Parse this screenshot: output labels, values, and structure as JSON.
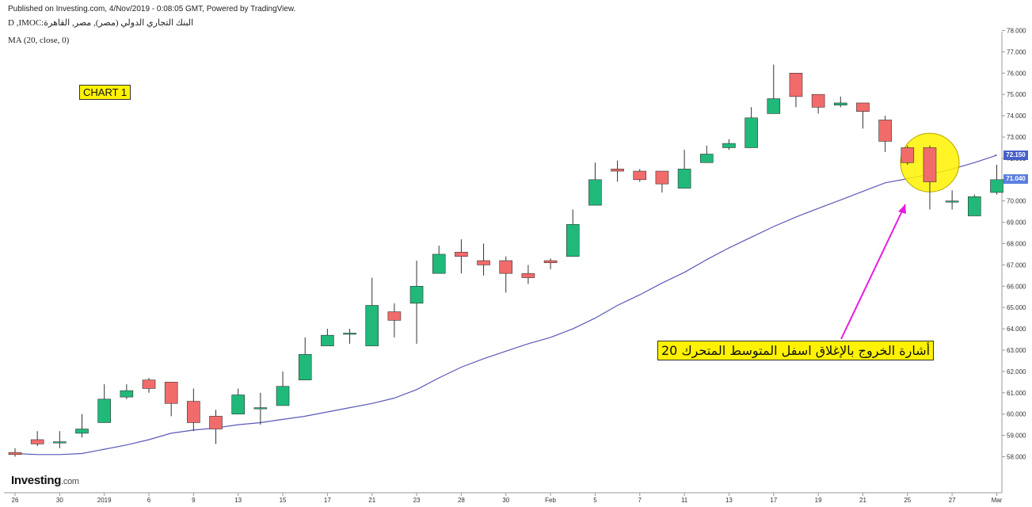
{
  "header": {
    "published": "Published on Investing.com, 4/Nov/2019 - 0:08:05 GMT, Powered by TradingView.",
    "symbol": "D ,IMOC:البنك التجاري الدولي (مصر), مصر, القاهرة",
    "indicator": "MA (20, close, 0)"
  },
  "chart_label": "CHART 1",
  "annotation": "أشارة الخروج بالإغلاق اسفل المتوسط المتحرك 20",
  "logo": {
    "name": "Investing",
    "suffix": ".com"
  },
  "price_tags": {
    "ma": "72.150",
    "close": "71.040"
  },
  "colors": {
    "up": "#20b97a",
    "down": "#f26b6b",
    "ma": "#5b58b8",
    "highlight": "#fff200",
    "arrow": "#e81adf",
    "ma_tag": "#4660c8",
    "close_tag": "#5a7fe0"
  },
  "chart_data": {
    "type": "candlestick",
    "title": "",
    "ylim": [
      57,
      78.5
    ],
    "y_ticks": [
      "58.000",
      "59.000",
      "60.000",
      "61.000",
      "62.000",
      "63.000",
      "64.000",
      "65.000",
      "66.000",
      "67.000",
      "68.000",
      "69.000",
      "70.000",
      "71.000",
      "72.000",
      "73.000",
      "74.000",
      "75.000",
      "76.000",
      "77.000",
      "78.000"
    ],
    "x_ticks": [
      "26",
      "30",
      "2019",
      "6",
      "9",
      "13",
      "15",
      "17",
      "21",
      "23",
      "28",
      "30",
      "Feb",
      "5",
      "7",
      "11",
      "13",
      "17",
      "19",
      "21",
      "25",
      "27",
      "Mar"
    ],
    "candles": [
      {
        "o": 58.2,
        "h": 58.4,
        "l": 58.0,
        "c": 58.1
      },
      {
        "o": 58.8,
        "h": 59.2,
        "l": 58.5,
        "c": 58.6
      },
      {
        "o": 58.7,
        "h": 59.2,
        "l": 58.4,
        "c": 58.7
      },
      {
        "o": 59.1,
        "h": 60.0,
        "l": 58.9,
        "c": 59.3
      },
      {
        "o": 59.6,
        "h": 61.4,
        "l": 59.6,
        "c": 60.7
      },
      {
        "o": 60.8,
        "h": 61.4,
        "l": 60.7,
        "c": 61.1
      },
      {
        "o": 61.6,
        "h": 61.7,
        "l": 61.0,
        "c": 61.2
      },
      {
        "o": 61.5,
        "h": 61.5,
        "l": 59.9,
        "c": 60.5
      },
      {
        "o": 60.6,
        "h": 61.2,
        "l": 59.2,
        "c": 59.6
      },
      {
        "o": 59.9,
        "h": 60.2,
        "l": 58.6,
        "c": 59.3
      },
      {
        "o": 60.0,
        "h": 61.2,
        "l": 60.0,
        "c": 60.9
      },
      {
        "o": 60.3,
        "h": 61.0,
        "l": 59.5,
        "c": 60.3
      },
      {
        "o": 60.4,
        "h": 62.0,
        "l": 60.4,
        "c": 61.3
      },
      {
        "o": 61.6,
        "h": 63.6,
        "l": 61.6,
        "c": 62.8
      },
      {
        "o": 63.2,
        "h": 64.0,
        "l": 63.2,
        "c": 63.7
      },
      {
        "o": 63.8,
        "h": 64.0,
        "l": 63.3,
        "c": 63.8
      },
      {
        "o": 63.2,
        "h": 66.4,
        "l": 63.2,
        "c": 65.1
      },
      {
        "o": 64.8,
        "h": 65.2,
        "l": 63.6,
        "c": 64.4
      },
      {
        "o": 65.2,
        "h": 67.2,
        "l": 63.3,
        "c": 66.0
      },
      {
        "o": 66.6,
        "h": 67.9,
        "l": 66.6,
        "c": 67.5
      },
      {
        "o": 67.6,
        "h": 68.2,
        "l": 66.6,
        "c": 67.4
      },
      {
        "o": 67.2,
        "h": 68.0,
        "l": 66.5,
        "c": 67.0
      },
      {
        "o": 67.2,
        "h": 67.4,
        "l": 65.7,
        "c": 66.6
      },
      {
        "o": 66.6,
        "h": 67.0,
        "l": 66.1,
        "c": 66.4
      },
      {
        "o": 67.2,
        "h": 67.3,
        "l": 66.8,
        "c": 67.1
      },
      {
        "o": 67.4,
        "h": 69.6,
        "l": 67.4,
        "c": 68.9
      },
      {
        "o": 69.8,
        "h": 71.8,
        "l": 69.8,
        "c": 71.0
      },
      {
        "o": 71.5,
        "h": 71.9,
        "l": 70.9,
        "c": 71.4
      },
      {
        "o": 71.4,
        "h": 71.5,
        "l": 70.9,
        "c": 71.0
      },
      {
        "o": 71.4,
        "h": 71.4,
        "l": 70.4,
        "c": 70.8
      },
      {
        "o": 70.6,
        "h": 72.4,
        "l": 70.6,
        "c": 71.5
      },
      {
        "o": 71.8,
        "h": 72.6,
        "l": 71.8,
        "c": 72.2
      },
      {
        "o": 72.5,
        "h": 72.9,
        "l": 72.4,
        "c": 72.7
      },
      {
        "o": 72.5,
        "h": 74.4,
        "l": 72.5,
        "c": 73.9
      },
      {
        "o": 74.1,
        "h": 76.4,
        "l": 74.1,
        "c": 74.8
      },
      {
        "o": 76.0,
        "h": 76.0,
        "l": 74.4,
        "c": 74.9
      },
      {
        "o": 75.0,
        "h": 75.0,
        "l": 74.1,
        "c": 74.4
      },
      {
        "o": 74.5,
        "h": 74.9,
        "l": 74.4,
        "c": 74.6
      },
      {
        "o": 74.6,
        "h": 74.6,
        "l": 73.4,
        "c": 74.2
      },
      {
        "o": 73.8,
        "h": 74.0,
        "l": 72.3,
        "c": 72.8
      },
      {
        "o": 72.5,
        "h": 72.6,
        "l": 71.7,
        "c": 71.8
      },
      {
        "o": 72.5,
        "h": 72.6,
        "l": 69.6,
        "c": 70.9
      },
      {
        "o": 70.0,
        "h": 70.5,
        "l": 69.6,
        "c": 70.0
      },
      {
        "o": 69.3,
        "h": 70.3,
        "l": 69.3,
        "c": 70.2
      },
      {
        "o": 70.4,
        "h": 71.7,
        "l": 70.3,
        "c": 71.0
      }
    ],
    "ma_series": {
      "name": "MA (20, close, 0)",
      "values": [
        58.15,
        58.1,
        58.1,
        58.15,
        58.35,
        58.55,
        58.8,
        59.1,
        59.25,
        59.35,
        59.5,
        59.6,
        59.75,
        59.9,
        60.1,
        60.3,
        60.5,
        60.75,
        61.15,
        61.7,
        62.2,
        62.6,
        62.95,
        63.3,
        63.6,
        64.0,
        64.5,
        65.1,
        65.6,
        66.15,
        66.65,
        67.25,
        67.8,
        68.3,
        68.8,
        69.25,
        69.65,
        70.05,
        70.45,
        70.85,
        71.05,
        71.25,
        71.5,
        71.8,
        72.15
      ]
    }
  }
}
